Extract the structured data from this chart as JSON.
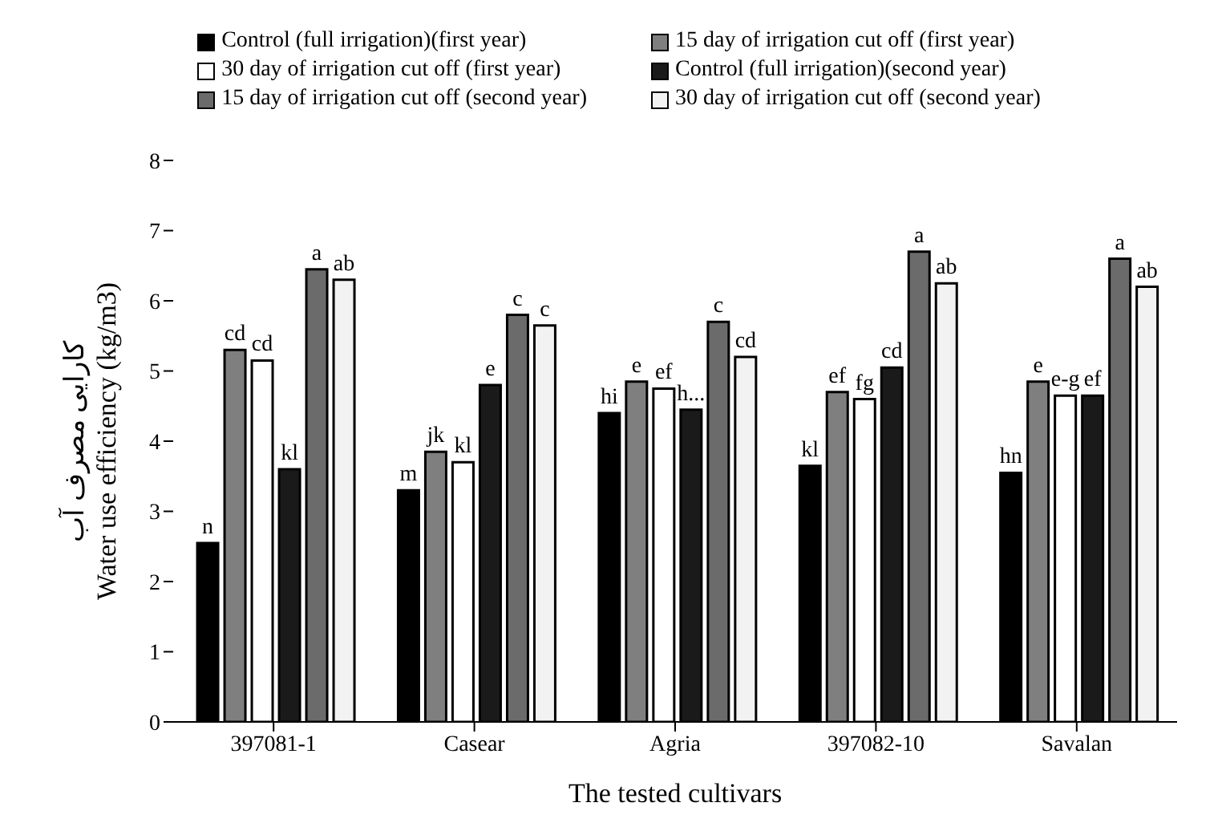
{
  "chart_data": {
    "type": "bar",
    "xlabel": "The tested cultivars",
    "ylabel": "کارایی مصرف آب\nWater use efficiency  (kg/m3)",
    "categories": [
      "397081-1",
      "Casear",
      "Agria",
      "397082-10",
      "Savalan"
    ],
    "ylim": [
      0,
      8
    ],
    "yticks": [
      0,
      1,
      2,
      3,
      4,
      5,
      6,
      7,
      8
    ],
    "grid": false,
    "legend": "top",
    "series": [
      {
        "name": "Control (full irrigation)(first year)",
        "color": "#000000",
        "values": [
          2.55,
          3.3,
          4.4,
          3.65,
          3.55
        ],
        "value_labels": [
          "n",
          "m",
          "hi",
          "kl",
          "hn"
        ]
      },
      {
        "name": "15 day of irrigation cut off (first year)",
        "color": "#7f7f7f",
        "values": [
          5.3,
          3.85,
          4.85,
          4.7,
          4.85
        ],
        "value_labels": [
          "cd",
          "jk",
          "e",
          "ef",
          "e"
        ]
      },
      {
        "name": "30 day of irrigation cut off (first year)",
        "color": "#ffffff",
        "values": [
          5.15,
          3.7,
          4.75,
          4.6,
          4.65
        ],
        "value_labels": [
          "cd",
          "kl",
          "ef",
          "fg",
          "e-g"
        ]
      },
      {
        "name": "Control (full irrigation)(second year)",
        "color": "#1a1a1a",
        "values": [
          3.6,
          4.8,
          4.45,
          5.05,
          4.65
        ],
        "value_labels": [
          "kl",
          "e",
          "h...",
          "cd",
          "ef"
        ]
      },
      {
        "name": "15 day of irrigation cut off (second year)",
        "color": "#6b6b6b",
        "values": [
          6.45,
          5.8,
          5.7,
          6.7,
          6.6
        ],
        "value_labels": [
          "a",
          "c",
          "c",
          "a",
          "a"
        ]
      },
      {
        "name": "30 day of irrigation cut off (second year)",
        "color": "#f2f2f2",
        "values": [
          6.3,
          5.65,
          5.2,
          6.25,
          6.2
        ],
        "value_labels": [
          "ab",
          "c",
          "cd",
          "ab",
          "ab"
        ]
      }
    ]
  }
}
